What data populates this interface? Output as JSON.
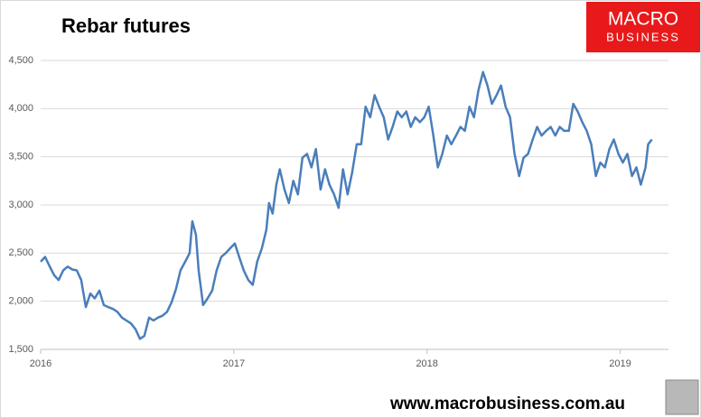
{
  "chart_data": {
    "type": "line",
    "title": "Rebar futures",
    "logo": {
      "line1": "MACRO",
      "line2": "BUSINESS"
    },
    "source": "www.macrobusiness.com.au",
    "series": [
      {
        "name": "Rebar futures",
        "color": "#4a7ebb",
        "x": [
          2016.0,
          2016.023,
          2016.047,
          2016.07,
          2016.093,
          2016.117,
          2016.14,
          2016.164,
          2016.187,
          2016.21,
          2016.234,
          2016.257,
          2016.28,
          2016.304,
          2016.327,
          2016.35,
          2016.374,
          2016.397,
          2016.421,
          2016.444,
          2016.467,
          2016.491,
          2016.514,
          2016.537,
          2016.561,
          2016.584,
          2016.607,
          2016.631,
          2016.654,
          2016.678,
          2016.701,
          2016.724,
          2016.748,
          2016.771,
          2016.785,
          2016.804,
          2016.818,
          2016.841,
          2016.864,
          2016.888,
          2016.911,
          2016.935,
          2016.958,
          2016.981,
          2017.005,
          2017.028,
          2017.051,
          2017.075,
          2017.098,
          2017.121,
          2017.145,
          2017.168,
          2017.182,
          2017.201,
          2017.22,
          2017.238,
          2017.262,
          2017.285,
          2017.308,
          2017.332,
          2017.355,
          2017.379,
          2017.402,
          2017.425,
          2017.449,
          2017.472,
          2017.495,
          2017.519,
          2017.542,
          2017.565,
          2017.589,
          2017.612,
          2017.636,
          2017.659,
          2017.682,
          2017.706,
          2017.729,
          2017.752,
          2017.776,
          2017.799,
          2017.822,
          2017.846,
          2017.869,
          2017.893,
          2017.916,
          2017.939,
          2017.963,
          2017.986,
          2018.009,
          2018.033,
          2018.056,
          2018.079,
          2018.103,
          2018.126,
          2018.15,
          2018.173,
          2018.196,
          2018.22,
          2018.243,
          2018.266,
          2018.29,
          2018.313,
          2018.336,
          2018.36,
          2018.383,
          2018.407,
          2018.43,
          2018.453,
          2018.477,
          2018.5,
          2018.523,
          2018.547,
          2018.57,
          2018.593,
          2018.617,
          2018.64,
          2018.664,
          2018.687,
          2018.71,
          2018.734,
          2018.757,
          2018.78,
          2018.804,
          2018.827,
          2018.85,
          2018.874,
          2018.897,
          2018.921,
          2018.944,
          2018.967,
          2018.991,
          2019.014,
          2019.037,
          2019.061,
          2019.084,
          2019.107,
          2019.131,
          2019.145,
          2019.164
        ],
        "values": [
          2410,
          2460,
          2360,
          2270,
          2220,
          2320,
          2360,
          2330,
          2320,
          2220,
          1940,
          2080,
          2030,
          2110,
          1960,
          1940,
          1920,
          1890,
          1830,
          1800,
          1770,
          1710,
          1610,
          1640,
          1830,
          1800,
          1830,
          1850,
          1890,
          1990,
          2130,
          2320,
          2410,
          2500,
          2830,
          2690,
          2320,
          1960,
          2030,
          2110,
          2320,
          2460,
          2500,
          2550,
          2600,
          2460,
          2320,
          2220,
          2170,
          2410,
          2550,
          2740,
          3020,
          2910,
          3210,
          3370,
          3160,
          3020,
          3250,
          3110,
          3490,
          3530,
          3390,
          3580,
          3160,
          3370,
          3210,
          3110,
          2970,
          3370,
          3110,
          3330,
          3630,
          3630,
          4020,
          3910,
          4140,
          4020,
          3910,
          3680,
          3810,
          3970,
          3910,
          3970,
          3810,
          3910,
          3860,
          3910,
          4020,
          3720,
          3390,
          3530,
          3720,
          3630,
          3720,
          3810,
          3770,
          4020,
          3910,
          4190,
          4380,
          4240,
          4050,
          4140,
          4240,
          4020,
          3910,
          3530,
          3300,
          3490,
          3530,
          3680,
          3810,
          3720,
          3770,
          3810,
          3720,
          3810,
          3770,
          3770,
          4050,
          3970,
          3860,
          3770,
          3630,
          3300,
          3440,
          3390,
          3580,
          3680,
          3530,
          3440,
          3530,
          3300,
          3390,
          3210,
          3390,
          3630,
          3680
        ]
      }
    ],
    "xlim": [
      2016,
      2019.25
    ],
    "xticks": [
      2016,
      2017,
      2018,
      2019
    ],
    "ylim": [
      1500,
      4500
    ],
    "yticks": [
      {
        "value": 1500,
        "label": "1,500"
      },
      {
        "value": 2000,
        "label": "2,000"
      },
      {
        "value": 2500,
        "label": "2,500"
      },
      {
        "value": 3000,
        "label": "3,000"
      },
      {
        "value": 3500,
        "label": "3,500"
      },
      {
        "value": 4000,
        "label": "4,000"
      },
      {
        "value": 4500,
        "label": "4,500"
      }
    ],
    "grid": true
  }
}
